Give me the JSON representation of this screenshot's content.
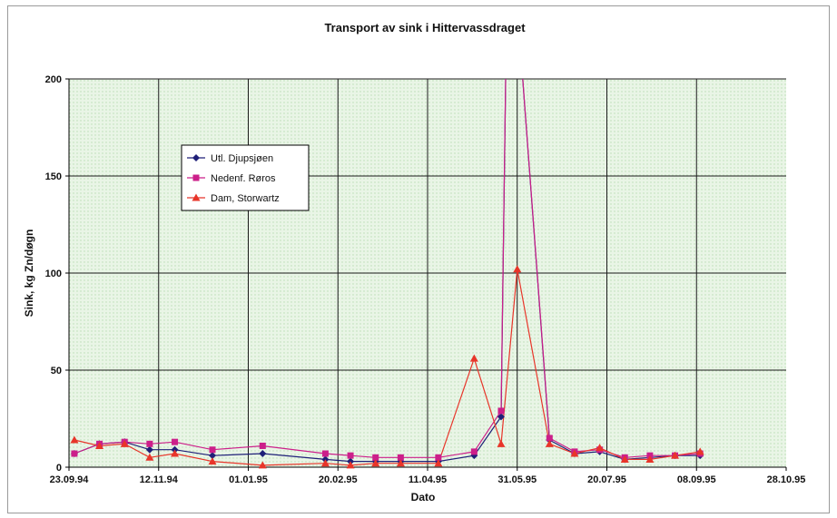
{
  "chart_data": {
    "type": "line",
    "title": "Transport av sink i Hittervassdraget",
    "xlabel": "Dato",
    "ylabel": "Sink, kg Zn/døgn",
    "ylim": [
      0,
      200
    ],
    "yticks": [
      0,
      50,
      100,
      150,
      200
    ],
    "xlim": [
      "1994-09-23",
      "1995-10-28"
    ],
    "xticks": [
      {
        "date": "1994-09-23",
        "label": "23.09.94"
      },
      {
        "date": "1994-11-12",
        "label": "12.11.94"
      },
      {
        "date": "1995-01-01",
        "label": "01.01.95"
      },
      {
        "date": "1995-02-20",
        "label": "20.02.95"
      },
      {
        "date": "1995-04-11",
        "label": "11.04.95"
      },
      {
        "date": "1995-05-31",
        "label": "31.05.95"
      },
      {
        "date": "1995-07-20",
        "label": "20.07.95"
      },
      {
        "date": "1995-09-08",
        "label": "08.09.95"
      },
      {
        "date": "1995-10-28",
        "label": "28.10.95"
      }
    ],
    "grid": true,
    "legend_position": "upper-left",
    "plot_background": "#eaf6ea",
    "series": [
      {
        "name": "Utl. Djupsjøen",
        "color": "#1f1f78",
        "marker": "diamond",
        "points": [
          {
            "x": "1994-09-26",
            "y": 7
          },
          {
            "x": "1994-10-10",
            "y": 12
          },
          {
            "x": "1994-10-24",
            "y": 13
          },
          {
            "x": "1994-11-07",
            "y": 9
          },
          {
            "x": "1994-11-21",
            "y": 9
          },
          {
            "x": "1994-12-12",
            "y": 6
          },
          {
            "x": "1995-01-09",
            "y": 7
          },
          {
            "x": "1995-02-13",
            "y": 4
          },
          {
            "x": "1995-02-27",
            "y": 3
          },
          {
            "x": "1995-03-13",
            "y": 3
          },
          {
            "x": "1995-03-27",
            "y": 3
          },
          {
            "x": "1995-04-17",
            "y": 3
          },
          {
            "x": "1995-05-07",
            "y": 6
          },
          {
            "x": "1995-05-22",
            "y": 26
          },
          {
            "x": "1995-05-26",
            "y": 300
          },
          {
            "x": "1995-06-18",
            "y": 14
          },
          {
            "x": "1995-07-02",
            "y": 7
          },
          {
            "x": "1995-07-16",
            "y": 8
          },
          {
            "x": "1995-07-30",
            "y": 4
          },
          {
            "x": "1995-08-13",
            "y": 5
          },
          {
            "x": "1995-08-27",
            "y": 6
          },
          {
            "x": "1995-09-10",
            "y": 6
          }
        ]
      },
      {
        "name": "Nedenf. Røros",
        "color": "#cc1f8a",
        "marker": "square",
        "points": [
          {
            "x": "1994-09-26",
            "y": 7
          },
          {
            "x": "1994-10-10",
            "y": 12
          },
          {
            "x": "1994-10-24",
            "y": 13
          },
          {
            "x": "1994-11-07",
            "y": 12
          },
          {
            "x": "1994-11-21",
            "y": 13
          },
          {
            "x": "1994-12-12",
            "y": 9
          },
          {
            "x": "1995-01-09",
            "y": 11
          },
          {
            "x": "1995-02-13",
            "y": 7
          },
          {
            "x": "1995-02-27",
            "y": 6
          },
          {
            "x": "1995-03-13",
            "y": 5
          },
          {
            "x": "1995-03-27",
            "y": 5
          },
          {
            "x": "1995-04-17",
            "y": 5
          },
          {
            "x": "1995-05-07",
            "y": 8
          },
          {
            "x": "1995-05-22",
            "y": 29
          },
          {
            "x": "1995-05-26",
            "y": 300
          },
          {
            "x": "1995-06-18",
            "y": 15
          },
          {
            "x": "1995-07-02",
            "y": 8
          },
          {
            "x": "1995-07-16",
            "y": 9
          },
          {
            "x": "1995-07-30",
            "y": 5
          },
          {
            "x": "1995-08-13",
            "y": 6
          },
          {
            "x": "1995-08-27",
            "y": 6
          },
          {
            "x": "1995-09-10",
            "y": 7
          }
        ]
      },
      {
        "name": "Dam, Storwartz",
        "color": "#e8352a",
        "marker": "triangle",
        "points": [
          {
            "x": "1994-09-26",
            "y": 14
          },
          {
            "x": "1994-10-10",
            "y": 11
          },
          {
            "x": "1994-10-24",
            "y": 12
          },
          {
            "x": "1994-11-07",
            "y": 5
          },
          {
            "x": "1994-11-21",
            "y": 7
          },
          {
            "x": "1994-12-12",
            "y": 3
          },
          {
            "x": "1995-01-09",
            "y": 1
          },
          {
            "x": "1995-02-13",
            "y": 2
          },
          {
            "x": "1995-02-27",
            "y": 1
          },
          {
            "x": "1995-03-13",
            "y": 2
          },
          {
            "x": "1995-03-27",
            "y": 2
          },
          {
            "x": "1995-04-17",
            "y": 2
          },
          {
            "x": "1995-05-07",
            "y": 56
          },
          {
            "x": "1995-05-22",
            "y": 12
          },
          {
            "x": "1995-05-31",
            "y": 102
          },
          {
            "x": "1995-06-18",
            "y": 12
          },
          {
            "x": "1995-07-02",
            "y": 7
          },
          {
            "x": "1995-07-16",
            "y": 10
          },
          {
            "x": "1995-07-30",
            "y": 4
          },
          {
            "x": "1995-08-13",
            "y": 4
          },
          {
            "x": "1995-08-27",
            "y": 6
          },
          {
            "x": "1995-09-10",
            "y": 8
          }
        ]
      }
    ]
  }
}
